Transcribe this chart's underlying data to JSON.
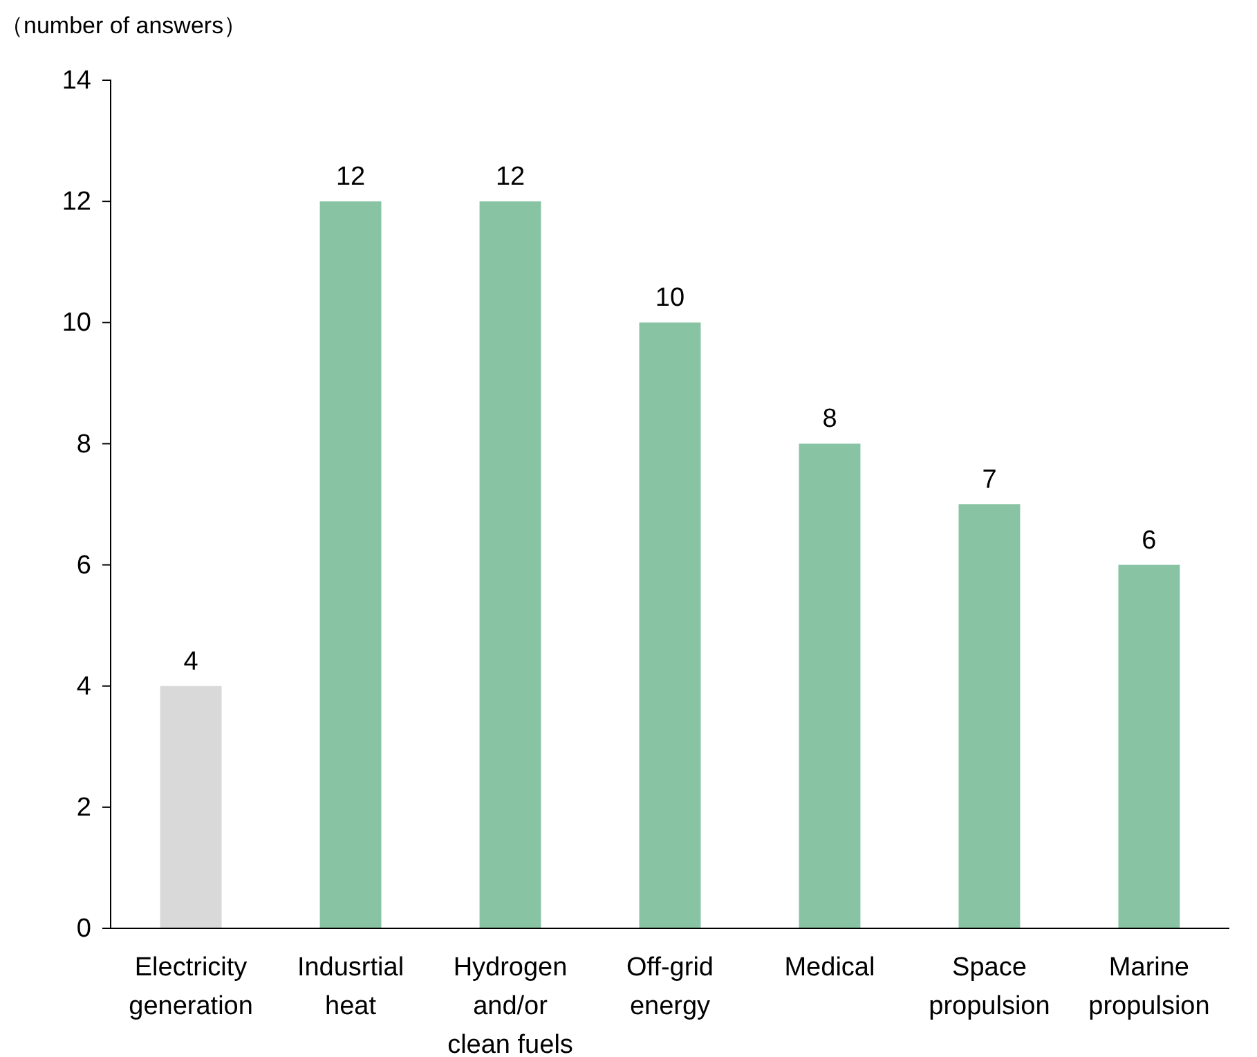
{
  "chart_data": {
    "type": "bar",
    "ylabel": "（number of answers）",
    "categories": [
      "Electricity\ngeneration",
      "Indusrtial\nheat",
      "Hydrogen\nand/or\nclean fuels",
      "Off-grid\nenergy",
      "Medical",
      "Space\npropulsion",
      "Marine\npropulsion"
    ],
    "values": [
      4,
      12,
      12,
      10,
      8,
      7,
      6
    ],
    "colors": [
      "#d9d9d9",
      "#88c4a4",
      "#88c4a4",
      "#88c4a4",
      "#88c4a4",
      "#88c4a4",
      "#88c4a4"
    ],
    "ylim": [
      0,
      14
    ],
    "yticks": [
      0,
      2,
      4,
      6,
      8,
      10,
      12,
      14
    ],
    "data_labels": true,
    "grid": false
  }
}
